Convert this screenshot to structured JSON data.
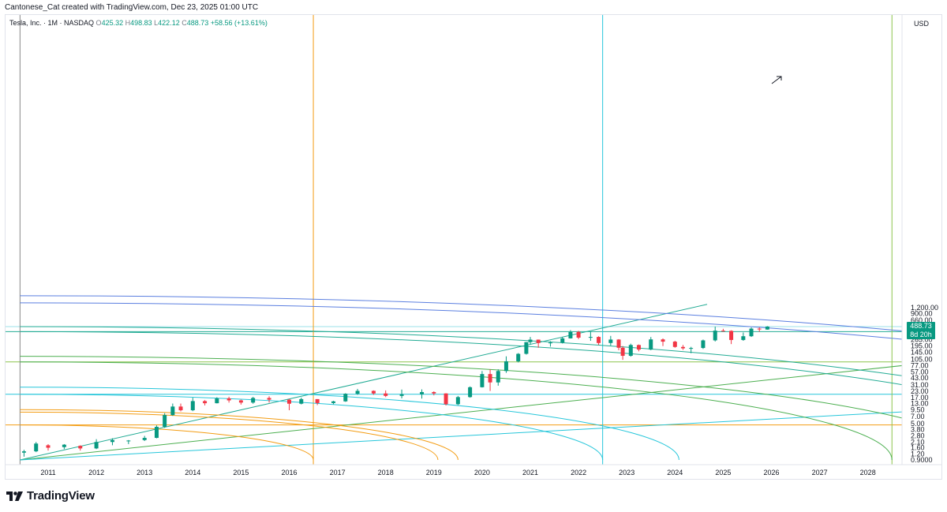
{
  "credit": "Cantonese_Cat created with TradingView.com, Dec 23, 2025 01:00 UTC",
  "legend": {
    "symbol": "Tesla, Inc. · 1M · NASDAQ",
    "o_label": "O",
    "o": "425.32",
    "h_label": "H",
    "h": "498.83",
    "l_label": "L",
    "l": "422.12",
    "c_label": "C",
    "c": "488.73",
    "change": "+58.56 (+13.61%)"
  },
  "brand": "TradingView",
  "colors": {
    "up": "#089981",
    "down": "#f23645",
    "orange": "#f39c12",
    "cyan": "#26c6da",
    "green": "#4caf50",
    "teal": "#22ab94",
    "blue": "#5b7fe0"
  },
  "chart_data": {
    "type": "candlestick",
    "interval": "1M",
    "currency": "USD",
    "y_scale": "log",
    "x_ticks": [
      "2011",
      "2012",
      "2013",
      "2014",
      "2015",
      "2016",
      "2017",
      "2018",
      "2019",
      "2020",
      "2021",
      "2022",
      "2023",
      "2024",
      "2025",
      "2026",
      "2027",
      "2028"
    ],
    "y_ticks": [
      "0.9000",
      "1.20",
      "1.60",
      "2.10",
      "2.80",
      "3.80",
      "5.00",
      "7.00",
      "9.50",
      "13.00",
      "17.00",
      "23.00",
      "31.00",
      "43.00",
      "57.00",
      "77.00",
      "105.00",
      "145.00",
      "195.00",
      "265.00",
      "365.00",
      "660.00",
      "900.00",
      "1,200.00"
    ],
    "last_price": "488.73",
    "countdown": "8d 20h",
    "candles": [
      {
        "t": "2010-07",
        "o": 1.27,
        "h": 1.45,
        "l": 1.05,
        "c": 1.35
      },
      {
        "t": "2010-10",
        "o": 1.35,
        "h": 2.1,
        "l": 1.3,
        "c": 1.95
      },
      {
        "t": "2011-01",
        "o": 1.8,
        "h": 1.9,
        "l": 1.4,
        "c": 1.6
      },
      {
        "t": "2011-05",
        "o": 1.65,
        "h": 1.9,
        "l": 1.5,
        "c": 1.85
      },
      {
        "t": "2011-09",
        "o": 1.75,
        "h": 1.8,
        "l": 1.4,
        "c": 1.55
      },
      {
        "t": "2012-01",
        "o": 1.55,
        "h": 2.4,
        "l": 1.5,
        "c": 2.1
      },
      {
        "t": "2012-05",
        "o": 2.1,
        "h": 2.5,
        "l": 1.8,
        "c": 2.3
      },
      {
        "t": "2012-09",
        "o": 2.2,
        "h": 2.3,
        "l": 1.9,
        "c": 2.25
      },
      {
        "t": "2013-01",
        "o": 2.3,
        "h": 2.8,
        "l": 2.2,
        "c": 2.55
      },
      {
        "t": "2013-04",
        "o": 2.55,
        "h": 4.6,
        "l": 2.5,
        "c": 4.3
      },
      {
        "t": "2013-06",
        "o": 4.3,
        "h": 8.2,
        "l": 4.1,
        "c": 7.5
      },
      {
        "t": "2013-08",
        "o": 7.5,
        "h": 12.9,
        "l": 7.2,
        "c": 11.2
      },
      {
        "t": "2013-10",
        "o": 11.2,
        "h": 12.9,
        "l": 8.9,
        "c": 9.4
      },
      {
        "t": "2014-01",
        "o": 9.4,
        "h": 17.0,
        "l": 9.0,
        "c": 14.5
      },
      {
        "t": "2014-04",
        "o": 14.5,
        "h": 15.2,
        "l": 11.8,
        "c": 13.1
      },
      {
        "t": "2014-07",
        "o": 13.1,
        "h": 17.4,
        "l": 13.0,
        "c": 16.5
      },
      {
        "t": "2014-10",
        "o": 16.5,
        "h": 17.8,
        "l": 13.5,
        "c": 15.0
      },
      {
        "t": "2015-01",
        "o": 15.0,
        "h": 15.5,
        "l": 12.3,
        "c": 13.5
      },
      {
        "t": "2015-04",
        "o": 13.5,
        "h": 17.7,
        "l": 12.8,
        "c": 16.8
      },
      {
        "t": "2015-08",
        "o": 16.8,
        "h": 18.2,
        "l": 13.5,
        "c": 15.5
      },
      {
        "t": "2016-01",
        "o": 15.5,
        "h": 16.0,
        "l": 9.4,
        "c": 12.8
      },
      {
        "t": "2016-04",
        "o": 12.8,
        "h": 17.1,
        "l": 12.4,
        "c": 15.9
      },
      {
        "t": "2016-08",
        "o": 15.9,
        "h": 15.9,
        "l": 12.0,
        "c": 13.2
      },
      {
        "t": "2016-12",
        "o": 13.2,
        "h": 14.7,
        "l": 12.5,
        "c": 14.3
      },
      {
        "t": "2017-03",
        "o": 14.3,
        "h": 21.0,
        "l": 14.0,
        "c": 20.5
      },
      {
        "t": "2017-06",
        "o": 20.5,
        "h": 25.8,
        "l": 19.5,
        "c": 23.5
      },
      {
        "t": "2017-10",
        "o": 23.5,
        "h": 24.0,
        "l": 19.5,
        "c": 20.8
      },
      {
        "t": "2018-01",
        "o": 20.8,
        "h": 24.0,
        "l": 17.5,
        "c": 18.5
      },
      {
        "t": "2018-05",
        "o": 18.5,
        "h": 25.0,
        "l": 16.5,
        "c": 20.0
      },
      {
        "t": "2018-10",
        "o": 20.0,
        "h": 25.2,
        "l": 16.3,
        "c": 22.2
      },
      {
        "t": "2019-01",
        "o": 22.2,
        "h": 23.0,
        "l": 19.0,
        "c": 20.8
      },
      {
        "t": "2019-04",
        "o": 20.8,
        "h": 21.0,
        "l": 11.8,
        "c": 12.5
      },
      {
        "t": "2019-07",
        "o": 12.5,
        "h": 18.5,
        "l": 12.0,
        "c": 17.5
      },
      {
        "t": "2019-10",
        "o": 17.5,
        "h": 29.0,
        "l": 17.0,
        "c": 27.9
      },
      {
        "t": "2020-01",
        "o": 27.9,
        "h": 60.0,
        "l": 27.5,
        "c": 52.0
      },
      {
        "t": "2020-03",
        "o": 52.0,
        "h": 65.0,
        "l": 23.4,
        "c": 35.0
      },
      {
        "t": "2020-05",
        "o": 35.0,
        "h": 65.0,
        "l": 30.0,
        "c": 60.0
      },
      {
        "t": "2020-07",
        "o": 60.0,
        "h": 120.0,
        "l": 55.0,
        "c": 95.0
      },
      {
        "t": "2020-10",
        "o": 95.0,
        "h": 140.0,
        "l": 90.0,
        "c": 135.0
      },
      {
        "t": "2020-12",
        "o": 135.0,
        "h": 235.0,
        "l": 130.0,
        "c": 235.0
      },
      {
        "t": "2021-01",
        "o": 235.0,
        "h": 300.0,
        "l": 210.0,
        "c": 264.0
      },
      {
        "t": "2021-03",
        "o": 264.0,
        "h": 265.0,
        "l": 180.0,
        "c": 225.0
      },
      {
        "t": "2021-06",
        "o": 225.0,
        "h": 245.0,
        "l": 190.0,
        "c": 230.0
      },
      {
        "t": "2021-09",
        "o": 230.0,
        "h": 300.0,
        "l": 220.0,
        "c": 280.0
      },
      {
        "t": "2021-11",
        "o": 280.0,
        "h": 414.0,
        "l": 278.0,
        "c": 380.0
      },
      {
        "t": "2022-01",
        "o": 380.0,
        "h": 400.0,
        "l": 270.0,
        "c": 290.0
      },
      {
        "t": "2022-04",
        "o": 290.0,
        "h": 385.0,
        "l": 250.0,
        "c": 300.0
      },
      {
        "t": "2022-06",
        "o": 300.0,
        "h": 310.0,
        "l": 206.0,
        "c": 225.0
      },
      {
        "t": "2022-09",
        "o": 225.0,
        "h": 315.0,
        "l": 200.0,
        "c": 265.0
      },
      {
        "t": "2022-11",
        "o": 265.0,
        "h": 270.0,
        "l": 160.0,
        "c": 180.0
      },
      {
        "t": "2022-12",
        "o": 180.0,
        "h": 195.0,
        "l": 101.8,
        "c": 123.0
      },
      {
        "t": "2023-02",
        "o": 123.0,
        "h": 218.0,
        "l": 118.0,
        "c": 205.0
      },
      {
        "t": "2023-04",
        "o": 205.0,
        "h": 210.0,
        "l": 152.0,
        "c": 165.0
      },
      {
        "t": "2023-07",
        "o": 165.0,
        "h": 299.0,
        "l": 160.0,
        "c": 267.0
      },
      {
        "t": "2023-10",
        "o": 267.0,
        "h": 280.0,
        "l": 195.0,
        "c": 240.0
      },
      {
        "t": "2024-01",
        "o": 240.0,
        "h": 250.0,
        "l": 180.0,
        "c": 187.0
      },
      {
        "t": "2024-03",
        "o": 187.0,
        "h": 205.0,
        "l": 163.0,
        "c": 175.0
      },
      {
        "t": "2024-05",
        "o": 175.0,
        "h": 188.0,
        "l": 138.8,
        "c": 178.0
      },
      {
        "t": "2024-08",
        "o": 178.0,
        "h": 265.0,
        "l": 170.0,
        "c": 255.0
      },
      {
        "t": "2024-11",
        "o": 255.0,
        "h": 488.5,
        "l": 242.0,
        "c": 404.0
      },
      {
        "t": "2025-01",
        "o": 404.0,
        "h": 440.0,
        "l": 385.0,
        "c": 400.0
      },
      {
        "t": "2025-03",
        "o": 400.0,
        "h": 410.0,
        "l": 214.0,
        "c": 260.0
      },
      {
        "t": "2025-06",
        "o": 260.0,
        "h": 370.0,
        "l": 250.0,
        "c": 310.0
      },
      {
        "t": "2025-08",
        "o": 310.0,
        "h": 470.0,
        "l": 300.0,
        "c": 444.0
      },
      {
        "t": "2025-10",
        "o": 444.0,
        "h": 474.0,
        "l": 382.0,
        "c": 430.0
      },
      {
        "t": "2025-12",
        "o": 425.32,
        "h": 498.83,
        "l": 422.12,
        "c": 488.73
      }
    ],
    "horizontal_lines": [
      {
        "price": 488.73,
        "color": "#9be0ea"
      },
      {
        "price": 385.0,
        "color": "#22ab94"
      },
      {
        "price": 92.0,
        "color": "#8bc34a"
      },
      {
        "price": 20.0,
        "color": "#26c6da"
      },
      {
        "price": 4.7,
        "color": "#f39c12"
      }
    ],
    "vertical_lines": [
      {
        "t": "2010-06",
        "color": "#888888"
      },
      {
        "t": "2016-07",
        "color": "#f39c12"
      },
      {
        "t": "2022-07",
        "color": "#26c6da"
      },
      {
        "t": "2028-07",
        "color": "#8bc34a"
      }
    ],
    "trend_lines": [
      {
        "from": {
          "t": "2010-06",
          "price": 0.9
        },
        "to": {
          "t": "2024-09",
          "price": 1400
        },
        "color": "#22ab94"
      },
      {
        "from": {
          "t": "2010-06",
          "price": 0.9
        },
        "to": {
          "t": "2029-06",
          "price": 92
        },
        "color": "#4caf50"
      },
      {
        "from": {
          "t": "2010-06",
          "price": 0.9
        },
        "to": {
          "t": "2029-06",
          "price": 9.5
        },
        "color": "#26c6da"
      }
    ],
    "arcs": [
      {
        "anchor": {
          "t": "2010-06",
          "price": 0.9
        },
        "end_t": "2016-07",
        "top_price": 4.7,
        "color": "#f39c12"
      },
      {
        "anchor": {
          "t": "2010-06",
          "price": 0.9
        },
        "end_t": "2019-02",
        "top_price": 8.6,
        "color": "#f39c12"
      },
      {
        "anchor": {
          "t": "2010-06",
          "price": 0.9
        },
        "end_t": "2019-07",
        "top_price": 9.7,
        "color": "#f39c12"
      },
      {
        "anchor": {
          "t": "2010-06",
          "price": 0.9
        },
        "end_t": "2022-07",
        "top_price": 20.0,
        "color": "#26c6da"
      },
      {
        "anchor": {
          "t": "2010-06",
          "price": 0.9
        },
        "end_t": "2024-02",
        "top_price": 28.0,
        "color": "#26c6da"
      },
      {
        "anchor": {
          "t": "2010-06",
          "price": 0.9
        },
        "end_t": "2028-07",
        "top_price": 92.0,
        "color": "#4caf50"
      },
      {
        "anchor": {
          "t": "2010-06",
          "price": 0.9
        },
        "end_t": "2030-06",
        "top_price": 120.0,
        "color": "#4caf50"
      },
      {
        "anchor": {
          "t": "2010-06",
          "price": 0.9
        },
        "end_t": "2033-01",
        "top_price": 385.0,
        "color": "#22ab94"
      },
      {
        "anchor": {
          "t": "2010-06",
          "price": 0.9
        },
        "end_t": "2034-01",
        "top_price": 488.73,
        "color": "#22ab94"
      },
      {
        "anchor": {
          "t": "2010-06",
          "price": 0.9
        },
        "end_t": "2039-01",
        "top_price": 1500.0,
        "color": "#5b7fe0"
      },
      {
        "anchor": {
          "t": "2010-06",
          "price": 0.9
        },
        "end_t": "2040-01",
        "top_price": 2100.0,
        "color": "#5b7fe0"
      }
    ]
  }
}
